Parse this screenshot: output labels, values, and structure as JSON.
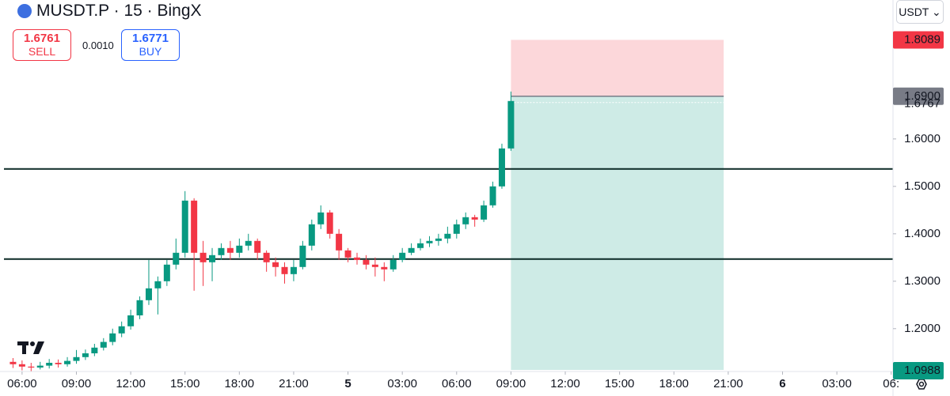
{
  "header": {
    "symbol_title": "MUSDT.P · 15 · BingX",
    "currency": "USDT"
  },
  "trade_panel": {
    "sell_price": "1.6761",
    "sell_label": "SELL",
    "spread": "0.0010",
    "buy_price": "1.6771",
    "buy_label": "BUY"
  },
  "chart_data": {
    "type": "candlestick",
    "x": [
      5.5,
      6,
      6.5,
      7,
      7.5,
      8,
      8.5,
      9,
      9.5,
      10,
      10.5,
      11,
      11.5,
      12,
      12.5,
      13,
      13.5,
      14,
      14.5,
      15,
      15.5,
      16,
      16.5,
      17,
      17.5,
      18,
      18.5,
      19,
      19.5,
      20,
      20.5,
      21,
      21.5,
      22,
      22.5,
      23,
      23.5,
      24,
      24.5,
      25,
      25.5,
      26,
      26.5,
      27,
      27.5,
      28,
      28.5,
      29,
      29.5,
      30,
      30.5,
      31,
      31.5,
      32,
      32.5,
      33
    ],
    "open": [
      1.13,
      1.125,
      1.12,
      1.118,
      1.122,
      1.128,
      1.125,
      1.132,
      1.14,
      1.148,
      1.16,
      1.172,
      1.19,
      1.205,
      1.228,
      1.26,
      1.285,
      1.3,
      1.335,
      1.36,
      1.47,
      1.36,
      1.34,
      1.355,
      1.37,
      1.36,
      1.375,
      1.385,
      1.36,
      1.34,
      1.33,
      1.315,
      1.33,
      1.375,
      1.42,
      1.445,
      1.4,
      1.365,
      1.35,
      1.345,
      1.335,
      1.33,
      1.325,
      1.345,
      1.36,
      1.37,
      1.38,
      1.385,
      1.39,
      1.4,
      1.42,
      1.435,
      1.43,
      1.46,
      1.5,
      1.58
    ],
    "high": [
      1.138,
      1.133,
      1.128,
      1.13,
      1.136,
      1.135,
      1.14,
      1.155,
      1.156,
      1.168,
      1.18,
      1.2,
      1.215,
      1.24,
      1.268,
      1.345,
      1.31,
      1.345,
      1.39,
      1.49,
      1.475,
      1.385,
      1.37,
      1.38,
      1.385,
      1.39,
      1.4,
      1.39,
      1.365,
      1.35,
      1.34,
      1.345,
      1.385,
      1.43,
      1.46,
      1.45,
      1.41,
      1.37,
      1.36,
      1.355,
      1.35,
      1.34,
      1.355,
      1.37,
      1.38,
      1.39,
      1.395,
      1.4,
      1.415,
      1.43,
      1.445,
      1.44,
      1.47,
      1.51,
      1.59,
      1.7
    ],
    "low": [
      1.117,
      1.112,
      1.11,
      1.114,
      1.116,
      1.118,
      1.12,
      1.126,
      1.134,
      1.142,
      1.154,
      1.165,
      1.182,
      1.198,
      1.22,
      1.25,
      1.23,
      1.29,
      1.325,
      1.35,
      1.28,
      1.29,
      1.3,
      1.345,
      1.345,
      1.35,
      1.365,
      1.345,
      1.32,
      1.31,
      1.295,
      1.3,
      1.325,
      1.365,
      1.41,
      1.39,
      1.345,
      1.34,
      1.335,
      1.325,
      1.31,
      1.3,
      1.32,
      1.34,
      1.355,
      1.365,
      1.372,
      1.375,
      1.38,
      1.39,
      1.41,
      1.415,
      1.425,
      1.455,
      1.495,
      1.575
    ],
    "close": [
      1.125,
      1.12,
      1.118,
      1.122,
      1.128,
      1.125,
      1.132,
      1.14,
      1.148,
      1.16,
      1.172,
      1.19,
      1.205,
      1.228,
      1.26,
      1.285,
      1.3,
      1.335,
      1.36,
      1.47,
      1.36,
      1.34,
      1.355,
      1.37,
      1.36,
      1.375,
      1.385,
      1.36,
      1.34,
      1.33,
      1.315,
      1.33,
      1.375,
      1.42,
      1.445,
      1.4,
      1.365,
      1.35,
      1.345,
      1.335,
      1.33,
      1.325,
      1.345,
      1.36,
      1.37,
      1.38,
      1.385,
      1.39,
      1.4,
      1.42,
      1.435,
      1.43,
      1.46,
      1.5,
      1.58,
      1.68
    ],
    "up_color": "#089981",
    "down_color": "#f23645",
    "xlim": [
      5,
      54.1
    ],
    "xticks": [
      {
        "value": 6,
        "label": "06:00"
      },
      {
        "value": 9,
        "label": "09:00"
      },
      {
        "value": 12,
        "label": "12:00"
      },
      {
        "value": 15,
        "label": "15:00"
      },
      {
        "value": 18,
        "label": "18:00"
      },
      {
        "value": 21,
        "label": "21:00"
      },
      {
        "value": 24,
        "label": "5"
      },
      {
        "value": 27,
        "label": "03:00"
      },
      {
        "value": 30,
        "label": "06:00"
      },
      {
        "value": 33,
        "label": "09:00"
      },
      {
        "value": 36,
        "label": "12:00"
      },
      {
        "value": 39,
        "label": "15:00"
      },
      {
        "value": 42,
        "label": "18:00"
      },
      {
        "value": 45,
        "label": "21:00"
      },
      {
        "value": 48,
        "label": "6"
      },
      {
        "value": 51,
        "label": "03:00"
      },
      {
        "value": 54,
        "label": "06:"
      }
    ],
    "ylim": [
      1.113,
      1.893
    ],
    "yticks": [
      {
        "value": 1.2,
        "label": "1.2000"
      },
      {
        "value": 1.3,
        "label": "1.3000"
      },
      {
        "value": 1.4,
        "label": "1.4000"
      },
      {
        "value": 1.5,
        "label": "1.5000"
      },
      {
        "value": 1.6,
        "label": "1.6000"
      }
    ],
    "horizontal_lines": [
      1.5367,
      1.3467
    ],
    "last_price": 1.6767,
    "position": {
      "x_start": 33,
      "x_end": 44.75,
      "entry": {
        "value": 1.69,
        "label": "1.6900"
      },
      "stop": 1.8089,
      "target": 1.0988,
      "stop_color": "#f23645",
      "target_color": "#089981"
    }
  }
}
